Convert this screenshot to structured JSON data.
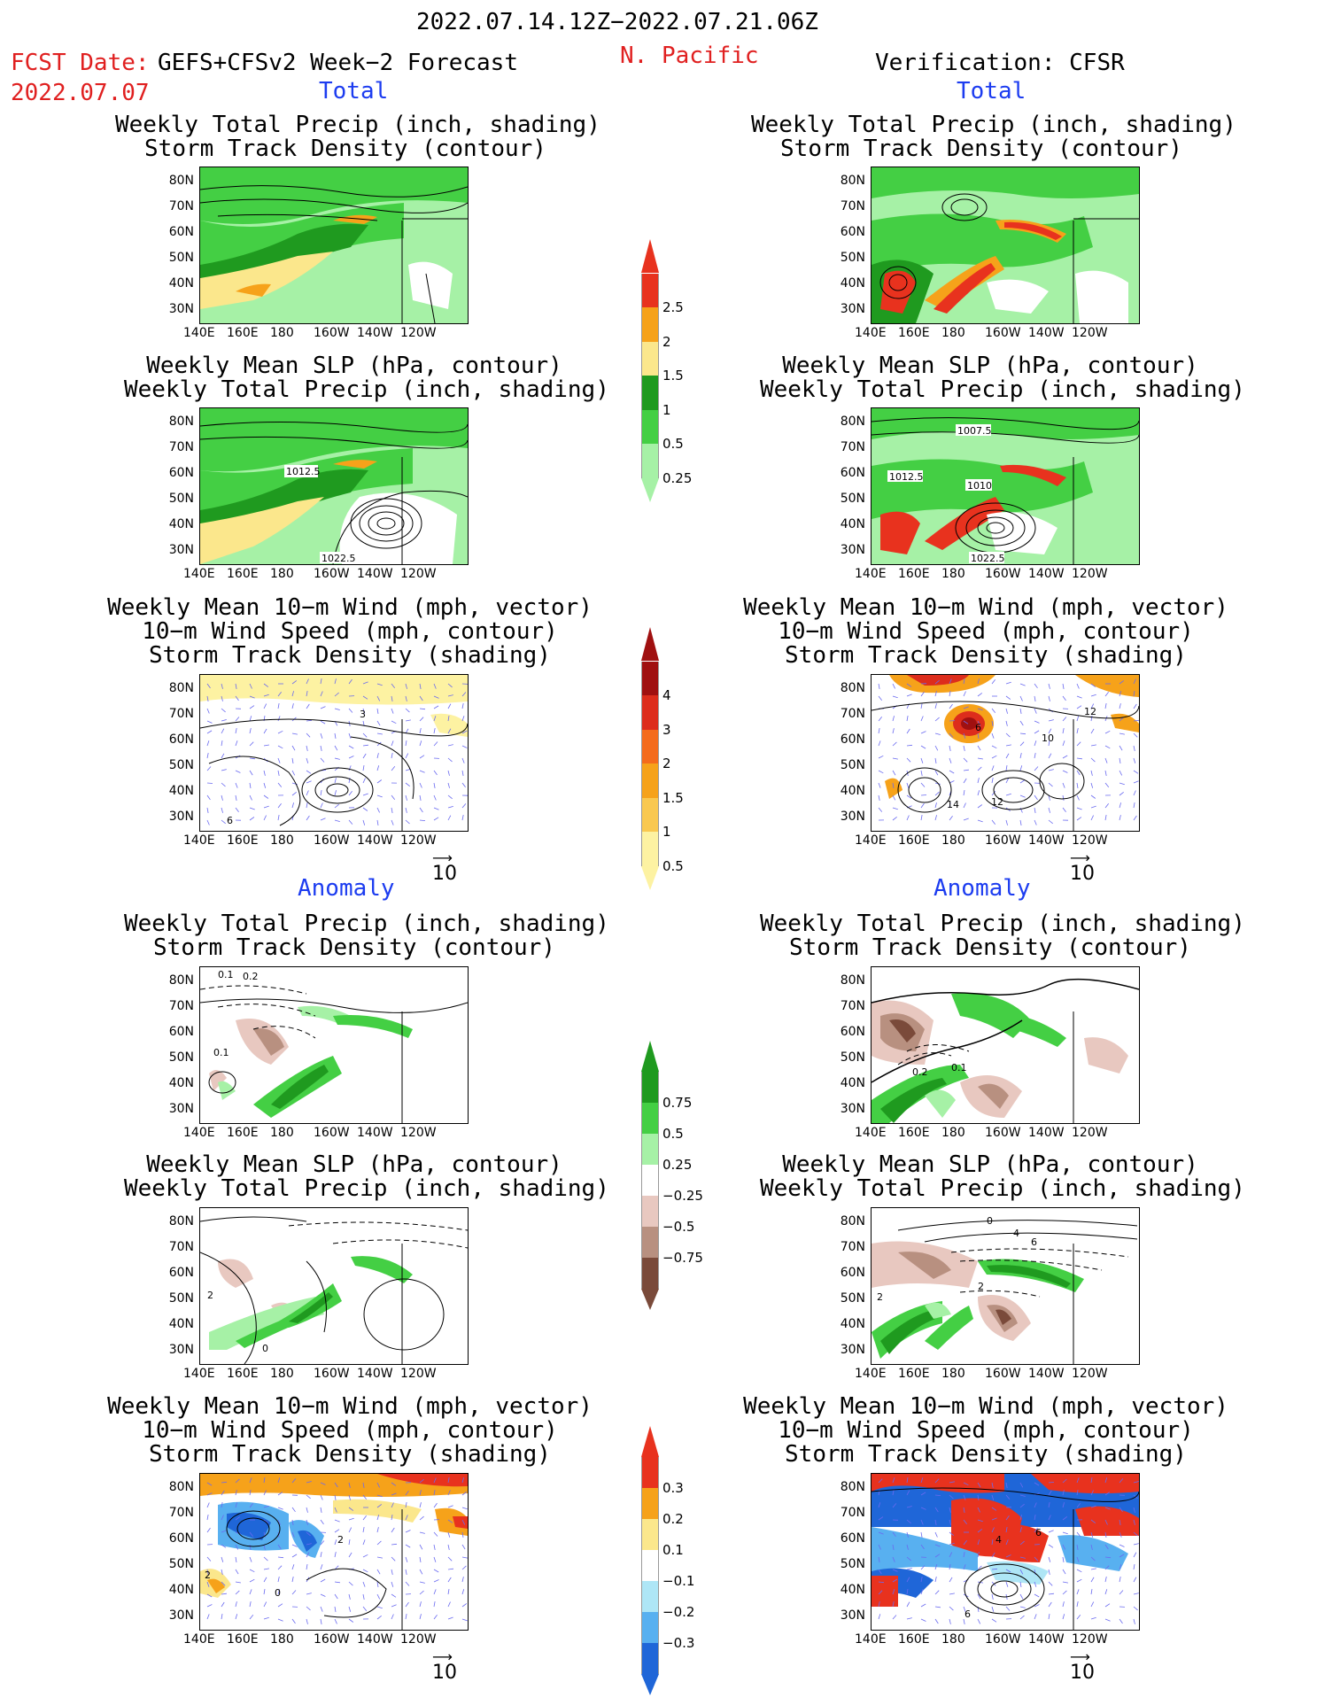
{
  "header": {
    "period": "2022.07.14.12Z−2022.07.21.06Z",
    "fcst_label": "FCST Date:",
    "model": "GEFS+CFSv2 Week−2 Forecast",
    "fcst_date": "2022.07.07",
    "region": "N. Pacific",
    "verification": "Verification: CFSR"
  },
  "sections": {
    "total": "Total",
    "anomaly": "Anomaly"
  },
  "titles": {
    "precip_storm": [
      "Weekly Total Precip (inch, shading)",
      "Storm Track Density (contour)"
    ],
    "slp_precip": [
      "Weekly Mean SLP (hPa, contour)",
      "Weekly Total Precip (inch, shading)"
    ],
    "wind_storm": [
      "Weekly Mean 10−m Wind (mph, vector)",
      "10−m Wind Speed (mph, contour)",
      "Storm Track Density (shading)"
    ]
  },
  "axes": {
    "lat_ticks": [
      "80N",
      "70N",
      "60N",
      "50N",
      "40N",
      "30N"
    ],
    "lon_ticks": [
      "140E",
      "160E",
      "180",
      "160W",
      "140W",
      "120W"
    ]
  },
  "vector_reference": "10",
  "contour_labels": {
    "fcst_slp": [
      "1012.5",
      "1022.5"
    ],
    "obs_slp": [
      "1007.5",
      "1012.5",
      "1010",
      "1022.5"
    ],
    "fcst_anom_storm": [
      "0.1",
      "0.2",
      "0.1"
    ],
    "obs_anom_storm": [
      "0.2",
      "0.1"
    ],
    "fcst_anom_slp": [
      "2",
      "0"
    ],
    "obs_anom_slp": [
      "0",
      "4",
      "6",
      "2",
      "2"
    ],
    "fcst_wind": [
      "3",
      "6"
    ],
    "obs_wind": [
      "6",
      "10",
      "12",
      "14",
      "12"
    ],
    "fcst_anom_wind": [
      "2",
      "0",
      "2"
    ],
    "obs_anom_wind": [
      "4",
      "6",
      "6"
    ]
  },
  "colorbars": {
    "total_precip": {
      "labels": [
        "2.5",
        "2",
        "1.5",
        "1",
        "0.5",
        "0.25"
      ],
      "colors": [
        "#e8321e",
        "#f6a21a",
        "#fbe78c",
        "#1f9a1f",
        "#44cf44",
        "#a6f1a6"
      ]
    },
    "storm_density": {
      "labels": [
        "4",
        "3",
        "2",
        "1.5",
        "1",
        "0.5"
      ],
      "colors": [
        "#a01010",
        "#dd2d1c",
        "#f46b1c",
        "#f6a21a",
        "#f9c850",
        "#fdf2a2"
      ]
    },
    "precip_anomaly": {
      "labels": [
        "0.75",
        "0.5",
        "0.25",
        "−0.25",
        "−0.5",
        "−0.75"
      ],
      "colors": [
        "#1f9a1f",
        "#44cf44",
        "#a6f1a6",
        "#ffffff",
        "#e8c8c0",
        "#b89080",
        "#7a4a3a"
      ]
    },
    "storm_anomaly": {
      "labels": [
        "0.3",
        "0.2",
        "0.1",
        "−0.1",
        "−0.2",
        "−0.3"
      ],
      "colors": [
        "#e8321e",
        "#f6a21a",
        "#fbe78c",
        "#ffffff",
        "#aee6f6",
        "#58b0f0",
        "#1f66d8"
      ]
    }
  }
}
